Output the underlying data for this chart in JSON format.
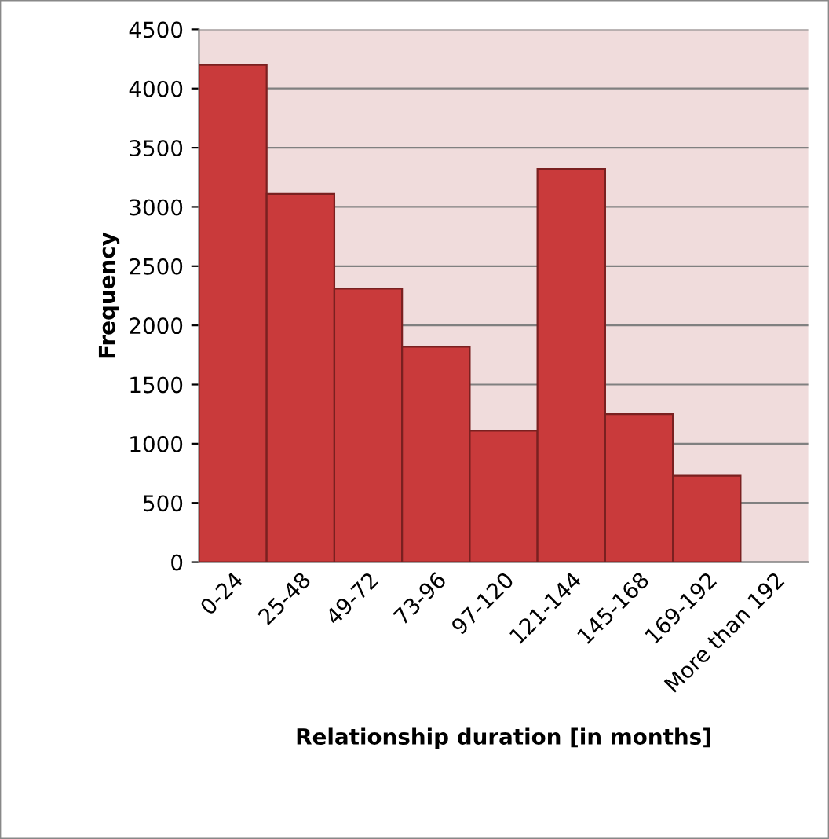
{
  "chart_data": {
    "type": "bar",
    "xlabel": "Relationship duration [in months]",
    "ylabel": "Frequency",
    "categories": [
      "0-24",
      "25-48",
      "49-72",
      "73-96",
      "97-120",
      "121-144",
      "145-168",
      "169-192",
      "More than 192"
    ],
    "values": [
      4200,
      3110,
      2310,
      1820,
      1110,
      3320,
      1250,
      730,
      0
    ],
    "color": "#c93a3b",
    "ylim": [
      0,
      4500
    ],
    "yticks": [
      0,
      500,
      1000,
      1500,
      2000,
      2500,
      3000,
      3500,
      4000,
      4500
    ],
    "grid": "y"
  }
}
